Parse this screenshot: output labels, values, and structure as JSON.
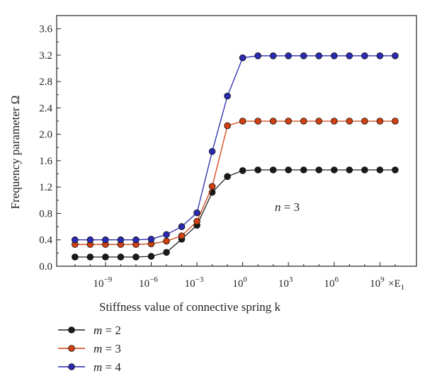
{
  "chart_data": {
    "type": "line",
    "xlabel": "Stiffness value of connective spring k",
    "ylabel": "Frequency parameter Ω",
    "x_unit_label": "×E",
    "x_unit_subscript": "1",
    "x_scale": "log",
    "x_exponents": [
      -11,
      -10,
      -9,
      -8,
      -7,
      -6,
      -5,
      -4,
      -3,
      -2,
      -1,
      0,
      1,
      2,
      3,
      4,
      5,
      6,
      7,
      8,
      9,
      10
    ],
    "x_tick_exponents": [
      -9,
      -6,
      -3,
      0,
      3,
      6,
      9
    ],
    "x_tick_labels": [
      "10",
      "10",
      "10",
      "10",
      "10",
      "10",
      "10"
    ],
    "x_tick_superscripts": [
      "−9",
      "−6",
      "−3",
      "0",
      "3",
      "6",
      "9"
    ],
    "ylim": [
      0.0,
      3.8
    ],
    "y_ticks": [
      "0.0",
      "0.4",
      "0.8",
      "1.2",
      "1.6",
      "2.0",
      "2.4",
      "2.8",
      "3.2",
      "3.6"
    ],
    "annotation": {
      "italic": "n",
      "rest": " = 3"
    },
    "legend_position": "bottom-left",
    "series": [
      {
        "name": "m = 2",
        "var": "m",
        "eq": " = 2",
        "color": "#d02d0e",
        "values": [
          0.14,
          0.14,
          0.14,
          0.14,
          0.14,
          0.15,
          0.21,
          0.41,
          0.62,
          1.12,
          1.36,
          1.45,
          1.46,
          1.46,
          1.46,
          1.46,
          1.46,
          1.46,
          1.46,
          1.46,
          1.46,
          1.46
        ]
      },
      {
        "name": "m = 3",
        "var": "m",
        "eq": " = 3",
        "color": "#d04010",
        "values": [
          0.33,
          0.33,
          0.33,
          0.33,
          0.33,
          0.34,
          0.38,
          0.46,
          0.68,
          1.21,
          2.13,
          2.2,
          2.2,
          2.2,
          2.2,
          2.2,
          2.2,
          2.2,
          2.2,
          2.2,
          2.2,
          2.2
        ]
      },
      {
        "name": "m = 4",
        "var": "m",
        "eq": " = 4",
        "color": "#2a2ab0",
        "values": [
          0.4,
          0.4,
          0.4,
          0.4,
          0.4,
          0.41,
          0.48,
          0.6,
          0.81,
          1.74,
          2.58,
          3.16,
          3.19,
          3.19,
          3.19,
          3.19,
          3.19,
          3.19,
          3.19,
          3.19,
          3.19,
          3.19
        ]
      }
    ]
  }
}
